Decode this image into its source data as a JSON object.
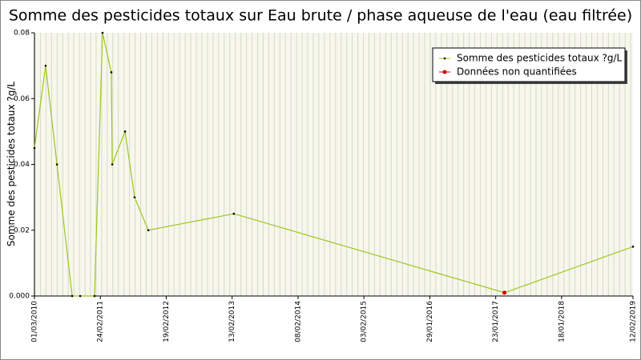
{
  "chart_data": {
    "type": "line",
    "title": "Somme des pesticides totaux sur Eau brute / phase aqueuse de l'eau (eau filtrée)",
    "y_label": "Somme des pesticides totaux ?g/L",
    "series": [
      {
        "name": "Somme des pesticides totaux ?g/L",
        "color": "#9cc61e",
        "marker_color": "#000000",
        "x": [
          "01/03/2010",
          "01/05/2010",
          "02/07/2010",
          "23/09/2010",
          "06/11/2010",
          "23/01/2011",
          "08/03/2011",
          "25/04/2011",
          "30/04/2011",
          "09/07/2011",
          "30/08/2011",
          "13/11/2011",
          "22/02/2013",
          "12/03/2017",
          "12/02/2019"
        ],
        "values": [
          0.045,
          0.07,
          0.04,
          0,
          0,
          0,
          0.08,
          0.068,
          0.04,
          0.05,
          0.03,
          0.02,
          0.025,
          0.001,
          0.015
        ]
      },
      {
        "name": "Données non quantifiées",
        "color": "#cc0000",
        "marker_color": "#cc0000",
        "x": [
          "12/03/2017"
        ],
        "values": [
          0.001
        ]
      }
    ],
    "xlim": [
      "01/03/2010",
      "12/02/2019"
    ],
    "xticks": [
      "01/03/2010",
      "24/02/2011",
      "19/02/2012",
      "13/02/2013",
      "08/02/2014",
      "03/02/2015",
      "29/01/2016",
      "23/01/2017",
      "18/01/2018",
      "12/02/2019"
    ],
    "ylim": [
      0,
      0.08
    ],
    "yticks": [
      {
        "value": 0,
        "label": "0.000"
      },
      0.02,
      0.04,
      0.06,
      0.08
    ],
    "legend": "upper right"
  }
}
